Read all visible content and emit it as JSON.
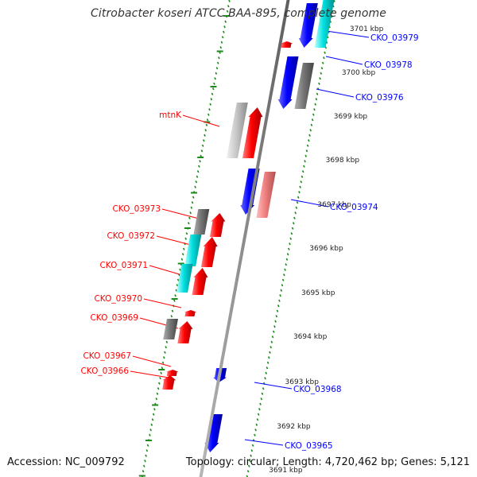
{
  "title": "Citrobacter koseri ATCC BAA-895, complete genome",
  "accession": "Accession: NC_009792",
  "topology": "Topology: circular; Length: 4,720,462 bp; Genes: 5,121",
  "kbp_labels": [
    "3701 kbp",
    "3700 kbp",
    "3699 kbp",
    "3698 kbp",
    "3697 kbp",
    "3696 kbp",
    "3695 kbp",
    "3694 kbp",
    "3693 kbp",
    "3692 kbp",
    "3691 kbp"
  ],
  "gene_labels_forward": [
    "mtnK",
    "CKO_03973",
    "CKO_03972",
    "CKO_03971",
    "CKO_03970",
    "CKO_03969",
    "CKO_03967",
    "CKO_03966"
  ],
  "gene_labels_reverse": [
    "CKO_03979",
    "CKO_03978",
    "CKO_03976",
    "CKO_03974",
    "CKO_03968",
    "CKO_03965"
  ],
  "colors": {
    "forward": "#ff0000",
    "reverse": "#0000ff",
    "rna": "#00e5e5",
    "gray": "#777777",
    "lightgray": "#c8c8c8",
    "pink": "#f08080",
    "tick": "#1a8a1a",
    "backbone": "#8c8c8c"
  }
}
